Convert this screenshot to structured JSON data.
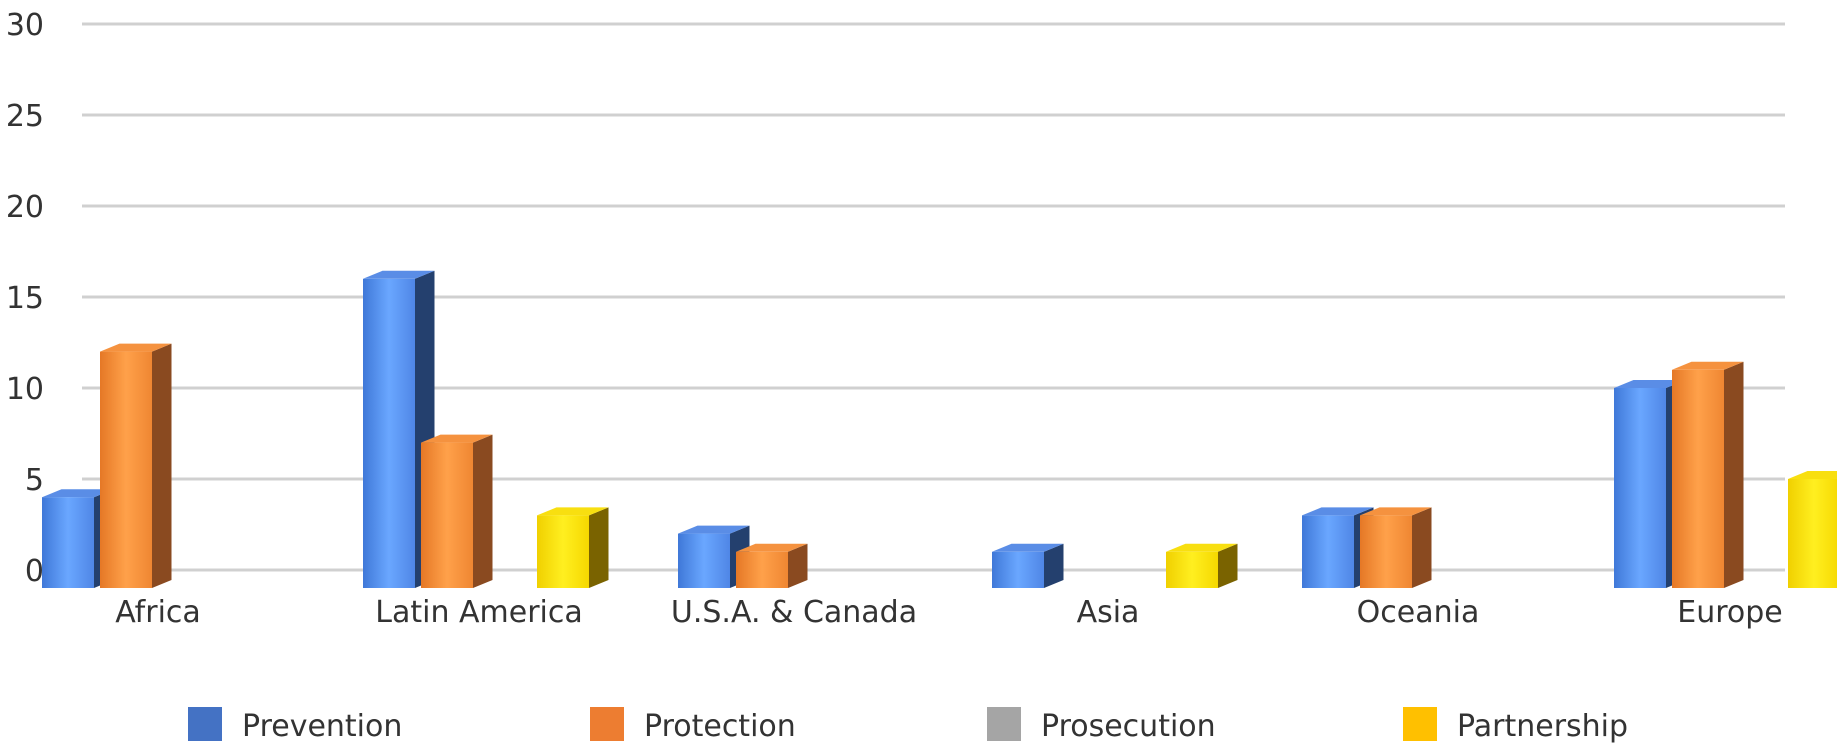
{
  "chart_data": {
    "type": "bar",
    "title": "",
    "xlabel": "",
    "ylabel": "",
    "categories": [
      "Africa",
      "Latin America",
      "U.S.A. & Canada",
      "Asia",
      "Oceania",
      "Europe"
    ],
    "ylim": [
      0,
      30
    ],
    "yticks": [
      0,
      5,
      10,
      15,
      20,
      25,
      30
    ],
    "grid": true,
    "legend_position": "bottom",
    "series": [
      {
        "name": "Prevention",
        "color": "#4472C4",
        "values": [
          4,
          16,
          2,
          1,
          3,
          10
        ]
      },
      {
        "name": "Protection",
        "color": "#ED7D31",
        "values": [
          12,
          7,
          1,
          0,
          3,
          11
        ]
      },
      {
        "name": "Prosecution",
        "color": "#A5A5A5",
        "values": [
          0,
          0,
          0,
          0,
          0,
          0
        ]
      },
      {
        "name": "Partnership",
        "color": "#FFC000",
        "values": [
          0,
          3,
          0,
          1,
          0,
          5
        ]
      }
    ]
  }
}
